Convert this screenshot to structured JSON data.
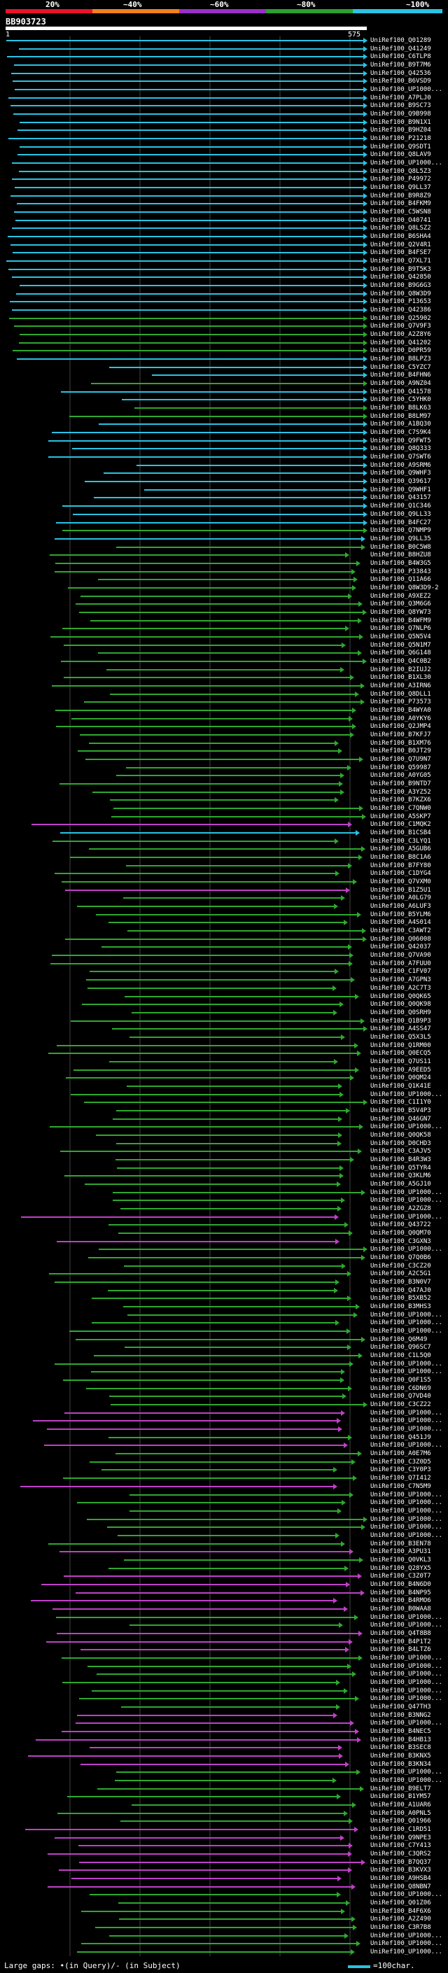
{
  "scale": {
    "ticks": [
      "20%",
      "~40%",
      "~60%",
      "~80%",
      "~100%"
    ],
    "colors": [
      "#e8132a",
      "#f08020",
      "#9a30c8",
      "#29a030",
      "#29c3e4"
    ]
  },
  "query": {
    "id": "BB903723",
    "start_label": "1",
    "end_label": "575"
  },
  "hits": [
    {
      "label": "UniRef100_Q01289",
      "color": "cyan"
    },
    {
      "label": "UniRef100_Q41249",
      "color": "cyan"
    },
    {
      "label": "UniRef100_C6TLP8",
      "color": "cyan"
    },
    {
      "label": "UniRef100_B9T7M6",
      "color": "cyan"
    },
    {
      "label": "UniRef100_Q42536",
      "color": "cyan"
    },
    {
      "label": "UniRef100_B6VSD9",
      "color": "cyan"
    },
    {
      "label": "UniRef100_UP1000...",
      "color": "cyan"
    },
    {
      "label": "UniRef100_A7PLJ0",
      "color": "cyan"
    },
    {
      "label": "UniRef100_B9SC73",
      "color": "cyan"
    },
    {
      "label": "UniRef100_Q9B998",
      "color": "cyan"
    },
    {
      "label": "UniRef100_B9N1X1",
      "color": "cyan"
    },
    {
      "label": "UniRef100_B9HZ04",
      "color": "cyan"
    },
    {
      "label": "UniRef100_P21218",
      "color": "cyan"
    },
    {
      "label": "UniRef100_Q9SDT1",
      "color": "cyan"
    },
    {
      "label": "UniRef100_Q8LAV9",
      "color": "cyan"
    },
    {
      "label": "UniRef100_UP1000...",
      "color": "cyan"
    },
    {
      "label": "UniRef100_Q8L5Z3",
      "color": "cyan"
    },
    {
      "label": "UniRef100_P49972",
      "color": "cyan"
    },
    {
      "label": "UniRef100_Q9LL37",
      "color": "cyan"
    },
    {
      "label": "UniRef100_B9R8Z9",
      "color": "cyan"
    },
    {
      "label": "UniRef100_B4FKM9",
      "color": "cyan"
    },
    {
      "label": "UniRef100_C5WSN8",
      "color": "cyan"
    },
    {
      "label": "UniRef100_O40741",
      "color": "cyan"
    },
    {
      "label": "UniRef100_Q8LSZ2",
      "color": "cyan"
    },
    {
      "label": "UniRef100_B6SHA4",
      "color": "cyan"
    },
    {
      "label": "UniRef100_Q2V4R1",
      "color": "cyan"
    },
    {
      "label": "UniRef100_B4FSE7",
      "color": "cyan"
    },
    {
      "label": "UniRef100_Q7XL71",
      "color": "cyan"
    },
    {
      "label": "UniRef100_B9T5K3",
      "color": "cyan"
    },
    {
      "label": "UniRef100_Q42850",
      "color": "cyan"
    },
    {
      "label": "UniRef100_B9G6G3",
      "color": "cyan"
    },
    {
      "label": "UniRef100_Q8W3D9",
      "color": "cyan"
    },
    {
      "label": "UniRef100_P13653",
      "color": "cyan"
    },
    {
      "label": "UniRef100_Q42386",
      "color": "cyan"
    },
    {
      "label": "UniRef100_Q25902",
      "color": "green"
    },
    {
      "label": "UniRef100_Q7V9F3",
      "color": "green"
    },
    {
      "label": "UniRef100_A2Z8Y6",
      "color": "green"
    },
    {
      "label": "UniRef100_Q41202",
      "color": "green"
    },
    {
      "label": "UniRef100_D0PR59",
      "color": "green"
    },
    {
      "label": "UniRef100_B8LPZ3",
      "color": "cyan"
    },
    {
      "label": "UniRef100_C5YZC7",
      "color": "cyan"
    },
    {
      "label": "UniRef100_B4FHN6",
      "color": "cyan"
    },
    {
      "label": "UniRef100_A9NZ04",
      "color": "green"
    },
    {
      "label": "UniRef100_Q41578",
      "color": "cyan"
    },
    {
      "label": "UniRef100_C5YHK0",
      "color": "cyan"
    },
    {
      "label": "UniRef100_B8LK63",
      "color": "green"
    },
    {
      "label": "UniRef100_B8LM97",
      "color": "green"
    },
    {
      "label": "UniRef100_A1BQ30",
      "color": "cyan"
    },
    {
      "label": "UniRef100_C7S9K4",
      "color": "cyan"
    },
    {
      "label": "UniRef100_Q9FWT5",
      "color": "cyan"
    },
    {
      "label": "UniRef100_Q8Q333",
      "color": "cyan"
    },
    {
      "label": "UniRef100_Q7SWT6",
      "color": "cyan"
    },
    {
      "label": "UniRef100_A9SRM6",
      "color": "cyan"
    },
    {
      "label": "UniRef100_Q9WHF3",
      "color": "cyan"
    },
    {
      "label": "UniRef100_Q39617",
      "color": "cyan"
    },
    {
      "label": "UniRef100_Q9WHF1",
      "color": "cyan"
    },
    {
      "label": "UniRef100_Q43157",
      "color": "cyan"
    },
    {
      "label": "UniRef100_Q1C346",
      "color": "cyan"
    },
    {
      "label": "UniRef100_Q9LL33",
      "color": "cyan"
    },
    {
      "label": "UniRef100_B4FC27",
      "color": "cyan"
    },
    {
      "label": "UniRef100_Q7NMP9",
      "color": "green"
    },
    {
      "label": "UniRef100_Q9LL35",
      "color": "cyan"
    },
    {
      "label": "UniRef100_B0C5W8",
      "color": "green"
    },
    {
      "label": "UniRef100_B8HZU8",
      "color": "green"
    },
    {
      "label": "UniRef100_B4W3G5",
      "color": "green"
    },
    {
      "label": "UniRef100_P33843",
      "color": "green"
    },
    {
      "label": "UniRef100_Q11A66",
      "color": "green"
    },
    {
      "label": "UniRef100_Q8W3D9-2",
      "color": "green"
    },
    {
      "label": "UniRef100_A9XEZ2",
      "color": "green"
    },
    {
      "label": "UniRef100_Q3M6G6",
      "color": "green"
    },
    {
      "label": "UniRef100_Q8YW73",
      "color": "green"
    },
    {
      "label": "UniRef100_B4WFM9",
      "color": "green"
    },
    {
      "label": "UniRef100_Q7NLP6",
      "color": "green"
    },
    {
      "label": "UniRef100_Q5N5V4",
      "color": "green"
    },
    {
      "label": "UniRef100_Q5N1M7",
      "color": "green"
    },
    {
      "label": "UniRef100_Q6G148",
      "color": "green"
    },
    {
      "label": "UniRef100_Q4C0B2",
      "color": "green"
    },
    {
      "label": "UniRef100_B2IUJ2",
      "color": "green"
    },
    {
      "label": "UniRef100_B1XL30",
      "color": "green"
    },
    {
      "label": "UniRef100_A3IRN6",
      "color": "green"
    },
    {
      "label": "UniRef100_Q8DLL1",
      "color": "green"
    },
    {
      "label": "UniRef100_P73573",
      "color": "green"
    },
    {
      "label": "UniRef100_B4WYA0",
      "color": "green"
    },
    {
      "label": "UniRef100_A0YKY6",
      "color": "green"
    },
    {
      "label": "UniRef100_Q2JMP4",
      "color": "green"
    },
    {
      "label": "UniRef100_B7KFJ7",
      "color": "green"
    },
    {
      "label": "UniRef100_B1XM76",
      "color": "green"
    },
    {
      "label": "UniRef100_B0JT29",
      "color": "green"
    },
    {
      "label": "UniRef100_Q7U9N7",
      "color": "green"
    },
    {
      "label": "UniRef100_Q59987",
      "color": "green"
    },
    {
      "label": "UniRef100_A0YG05",
      "color": "green"
    },
    {
      "label": "UniRef100_B9NTD7",
      "color": "green"
    },
    {
      "label": "UniRef100_A3YZ52",
      "color": "green"
    },
    {
      "label": "UniRef100_B7KZX6",
      "color": "green"
    },
    {
      "label": "UniRef100_C7QNW0",
      "color": "green"
    },
    {
      "label": "UniRef100_A5SKP7",
      "color": "green"
    },
    {
      "label": "UniRef100_C1MQK2",
      "color": "magenta"
    },
    {
      "label": "UniRef100_B1CSB4",
      "color": "cyan"
    },
    {
      "label": "UniRef100_C3LYQ1",
      "color": "green"
    },
    {
      "label": "UniRef100_A5GUB6",
      "color": "green"
    },
    {
      "label": "UniRef100_B8C1A6",
      "color": "green"
    },
    {
      "label": "UniRef100_B7FY80",
      "color": "green"
    },
    {
      "label": "UniRef100_C1DYG4",
      "color": "green"
    },
    {
      "label": "UniRef100_Q7VXM0",
      "color": "green"
    },
    {
      "label": "UniRef100_B1Z5U1",
      "color": "magenta"
    },
    {
      "label": "UniRef100_A0LG79",
      "color": "green"
    },
    {
      "label": "UniRef100_A6LUF3",
      "color": "green"
    },
    {
      "label": "UniRef100_B5YLM6",
      "color": "green"
    },
    {
      "label": "UniRef100_A4S014",
      "color": "green"
    },
    {
      "label": "UniRef100_C3AWT2",
      "color": "green"
    },
    {
      "label": "UniRef100_Q06008",
      "color": "green"
    },
    {
      "label": "UniRef100_Q42037",
      "color": "green"
    },
    {
      "label": "UniRef100_Q7VA90",
      "color": "green"
    },
    {
      "label": "UniRef100_A7FUU0",
      "color": "green"
    },
    {
      "label": "UniRef100_C1FV07",
      "color": "green"
    },
    {
      "label": "UniRef100_A7GPN3",
      "color": "green"
    },
    {
      "label": "UniRef100_A2C7T3",
      "color": "green"
    },
    {
      "label": "UniRef100_Q0QK65",
      "color": "green"
    },
    {
      "label": "UniRef100_Q0QK98",
      "color": "green"
    },
    {
      "label": "UniRef100_Q0SRH9",
      "color": "green"
    },
    {
      "label": "UniRef100_Q1B9P3",
      "color": "green"
    },
    {
      "label": "UniRef100_A4SS47",
      "color": "green"
    },
    {
      "label": "UniRef100_Q5X3L5",
      "color": "green"
    },
    {
      "label": "UniRef100_Q1RM00",
      "color": "green"
    },
    {
      "label": "UniRef100_Q0ECQ5",
      "color": "green"
    },
    {
      "label": "UniRef100_Q7US11",
      "color": "green"
    },
    {
      "label": "UniRef100_A9EED5",
      "color": "green"
    },
    {
      "label": "UniRef100_Q0QM24",
      "color": "green"
    },
    {
      "label": "UniRef100_Q1K41E",
      "color": "green"
    },
    {
      "label": "UniRef100_UP1000...",
      "color": "green"
    },
    {
      "label": "UniRef100_C1I1Y0",
      "color": "green"
    },
    {
      "label": "UniRef100_B5V4P3",
      "color": "green"
    },
    {
      "label": "UniRef100_Q46GN7",
      "color": "green"
    },
    {
      "label": "UniRef100_UP1000...",
      "color": "green"
    },
    {
      "label": "UniRef100_Q0QK58",
      "color": "green"
    },
    {
      "label": "UniRef100_D0CHD3",
      "color": "green"
    },
    {
      "label": "UniRef100_C3AJV5",
      "color": "green"
    },
    {
      "label": "UniRef100_B4R3W3",
      "color": "green"
    },
    {
      "label": "UniRef100_Q5TYR4",
      "color": "green"
    },
    {
      "label": "UniRef100_Q3KLM6",
      "color": "green"
    },
    {
      "label": "UniRef100_A5GJ10",
      "color": "green"
    },
    {
      "label": "UniRef100_UP1000...",
      "color": "green"
    },
    {
      "label": "UniRef100_UP1000...",
      "color": "green"
    },
    {
      "label": "UniRef100_A2ZGZ8",
      "color": "green"
    },
    {
      "label": "UniRef100_UP1000...",
      "color": "magenta"
    },
    {
      "label": "UniRef100_Q43722",
      "color": "green"
    },
    {
      "label": "UniRef100_Q0QM70",
      "color": "green"
    },
    {
      "label": "UniRef100_C3GXN3",
      "color": "magenta"
    },
    {
      "label": "UniRef100_UP1000...",
      "color": "green"
    },
    {
      "label": "UniRef100_Q7Q0B6",
      "color": "green"
    },
    {
      "label": "UniRef100_C3CZ20",
      "color": "green"
    },
    {
      "label": "UniRef100_A2C5G1",
      "color": "green"
    },
    {
      "label": "UniRef100_B3N0V7",
      "color": "green"
    },
    {
      "label": "UniRef100_Q47AJ0",
      "color": "green"
    },
    {
      "label": "UniRef100_B5XB52",
      "color": "green"
    },
    {
      "label": "UniRef100_B3MHS3",
      "color": "green"
    },
    {
      "label": "UniRef100_UP1000...",
      "color": "green"
    },
    {
      "label": "UniRef100_UP1000...",
      "color": "green"
    },
    {
      "label": "UniRef100_UP1000...",
      "color": "green"
    },
    {
      "label": "UniRef100_Q6M49",
      "color": "green"
    },
    {
      "label": "UniRef100_Q96SC7",
      "color": "green"
    },
    {
      "label": "UniRef100_C1L5Q0",
      "color": "green"
    },
    {
      "label": "UniRef100_UP1000...",
      "color": "green"
    },
    {
      "label": "UniRef100_UP1000...",
      "color": "green"
    },
    {
      "label": "UniRef100_Q0F1S5",
      "color": "green"
    },
    {
      "label": "UniRef100_C6DN69",
      "color": "green"
    },
    {
      "label": "UniRef100_Q7VD40",
      "color": "green"
    },
    {
      "label": "UniRef100_C3CZ22",
      "color": "green"
    },
    {
      "label": "UniRef100_UP1000...",
      "color": "magenta"
    },
    {
      "label": "UniRef100_UP1000...",
      "color": "magenta"
    },
    {
      "label": "UniRef100_UP1000...",
      "color": "magenta"
    },
    {
      "label": "UniRef100_Q451J9",
      "color": "green"
    },
    {
      "label": "UniRef100_UP1000...",
      "color": "magenta"
    },
    {
      "label": "UniRef100_A0E7M6",
      "color": "green"
    },
    {
      "label": "UniRef100_C3Z0D5",
      "color": "green"
    },
    {
      "label": "UniRef100_C3Y0P3",
      "color": "green"
    },
    {
      "label": "UniRef100_Q7I412",
      "color": "green"
    },
    {
      "label": "UniRef100_C7N5M9",
      "color": "magenta"
    },
    {
      "label": "UniRef100_UP1000...",
      "color": "green"
    },
    {
      "label": "UniRef100_UP1000...",
      "color": "green"
    },
    {
      "label": "UniRef100_UP1000...",
      "color": "green"
    },
    {
      "label": "UniRef100_UP1000...",
      "color": "green"
    },
    {
      "label": "UniRef100_UP1000...",
      "color": "green"
    },
    {
      "label": "UniRef100_UP1000...",
      "color": "green"
    },
    {
      "label": "UniRef100_B3EN78",
      "color": "green"
    },
    {
      "label": "UniRef100_A3PU31",
      "color": "magenta"
    },
    {
      "label": "UniRef100_Q0VKL3",
      "color": "green"
    },
    {
      "label": "UniRef100_Q28YX5",
      "color": "green"
    },
    {
      "label": "UniRef100_C3Z0T7",
      "color": "magenta"
    },
    {
      "label": "UniRef100_B4N6D0",
      "color": "magenta"
    },
    {
      "label": "UniRef100_B4NP95",
      "color": "magenta"
    },
    {
      "label": "UniRef100_B4RMO6",
      "color": "magenta"
    },
    {
      "label": "UniRef100_B0WAA8",
      "color": "magenta"
    },
    {
      "label": "UniRef100_UP1000...",
      "color": "green"
    },
    {
      "label": "UniRef100_UP1000...",
      "color": "green"
    },
    {
      "label": "UniRef100_Q4T8B8",
      "color": "magenta"
    },
    {
      "label": "UniRef100_B4P1T2",
      "color": "magenta"
    },
    {
      "label": "UniRef100_B4LTZ6",
      "color": "magenta"
    },
    {
      "label": "UniRef100_UP1000...",
      "color": "green"
    },
    {
      "label": "UniRef100_UP1000...",
      "color": "green"
    },
    {
      "label": "UniRef100_UP1000...",
      "color": "green"
    },
    {
      "label": "UniRef100_UP1000...",
      "color": "green"
    },
    {
      "label": "UniRef100_UP1000...",
      "color": "green"
    },
    {
      "label": "UniRef100_UP1000...",
      "color": "green"
    },
    {
      "label": "UniRef100_Q47TH3",
      "color": "green"
    },
    {
      "label": "UniRef100_B3NNG2",
      "color": "magenta"
    },
    {
      "label": "UniRef100_UP1000...",
      "color": "magenta"
    },
    {
      "label": "UniRef100_B4NEC5",
      "color": "magenta"
    },
    {
      "label": "UniRef100_B4HB13",
      "color": "magenta"
    },
    {
      "label": "UniRef100_B3SEC8",
      "color": "magenta"
    },
    {
      "label": "UniRef100_B3KNX5",
      "color": "magenta"
    },
    {
      "label": "UniRef100_B3KN34",
      "color": "magenta"
    },
    {
      "label": "UniRef100_UP1000...",
      "color": "green"
    },
    {
      "label": "UniRef100_UP1000...",
      "color": "green"
    },
    {
      "label": "UniRef100_B9ELT7",
      "color": "green"
    },
    {
      "label": "UniRef100_B1YM57",
      "color": "green"
    },
    {
      "label": "UniRef100_A1UAR6",
      "color": "green"
    },
    {
      "label": "UniRef100_A0PNL5",
      "color": "green"
    },
    {
      "label": "UniRef100_Q01966",
      "color": "green"
    },
    {
      "label": "UniRef100_C1RD51",
      "color": "magenta"
    },
    {
      "label": "UniRef100_Q9NPE3",
      "color": "magenta"
    },
    {
      "label": "UniRef100_C7Y413",
      "color": "magenta"
    },
    {
      "label": "UniRef100_C3QRS2",
      "color": "magenta"
    },
    {
      "label": "UniRef100_B7QQ37",
      "color": "magenta"
    },
    {
      "label": "UniRef100_B3KVX3",
      "color": "magenta"
    },
    {
      "label": "UniRef100_A9HSB4",
      "color": "magenta"
    },
    {
      "label": "UniRef100_Q8NBN7",
      "color": "magenta"
    },
    {
      "label": "UniRef100_UP1000...",
      "color": "green"
    },
    {
      "label": "UniRef100_Q01Z06",
      "color": "green"
    },
    {
      "label": "UniRef100_B4F6X6",
      "color": "green"
    },
    {
      "label": "UniRef100_A2Z490",
      "color": "green"
    },
    {
      "label": "UniRef100_C3R7B8",
      "color": "green"
    },
    {
      "label": "UniRef100_UP1000...",
      "color": "green"
    },
    {
      "label": "UniRef100_UP1000...",
      "color": "green"
    },
    {
      "label": "UniRef100_UP1000...",
      "color": "green"
    }
  ],
  "legend": {
    "gaps_text": "Large gaps: •(in Query)/- (in Subject)",
    "scale_text": "=100char."
  }
}
